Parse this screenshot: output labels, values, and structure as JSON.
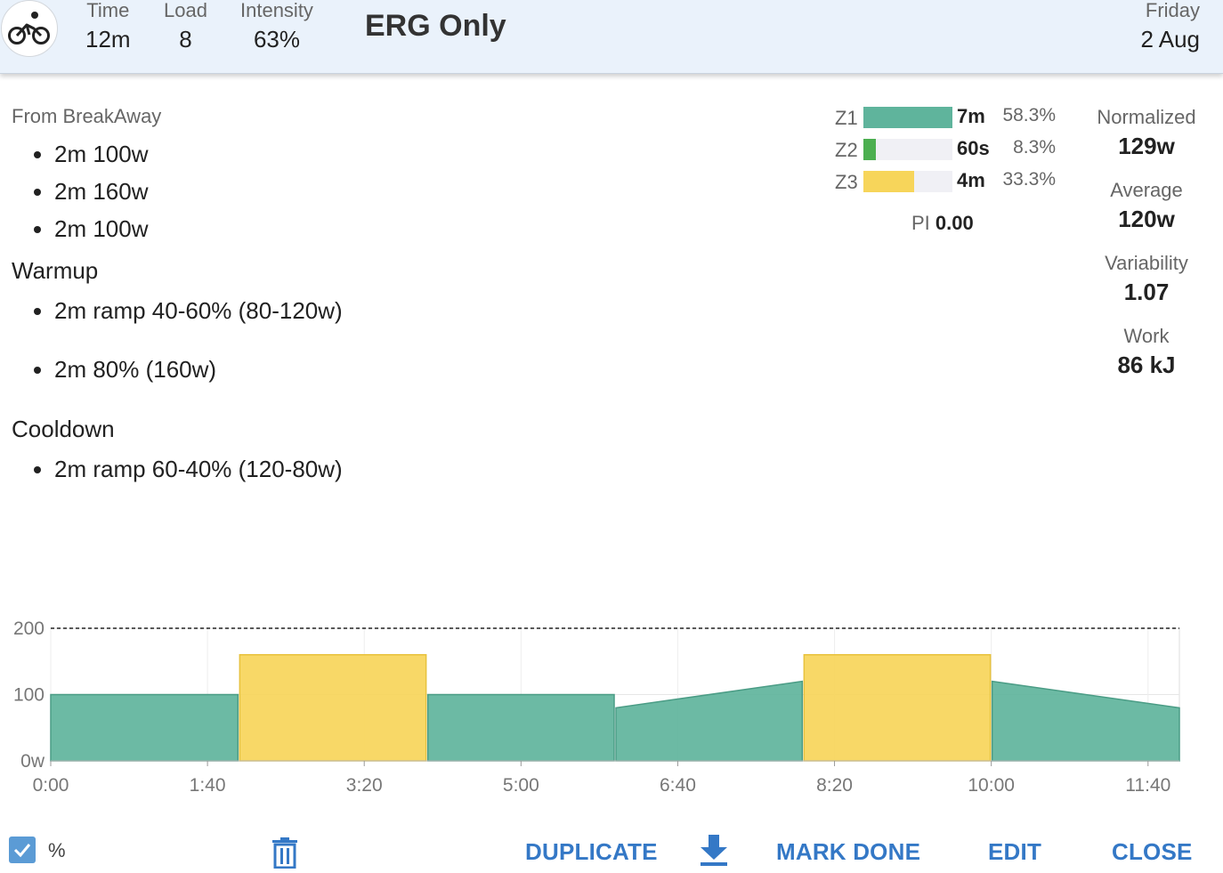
{
  "header": {
    "activity_icon": "bike-icon",
    "stats": [
      {
        "label": "Time",
        "value": "12m"
      },
      {
        "label": "Load",
        "value": "8"
      },
      {
        "label": "Intensity",
        "value": "63%"
      }
    ],
    "title": "ERG Only",
    "day": "Friday",
    "date": "2 Aug"
  },
  "description": {
    "source": "From BreakAway",
    "intro_steps": [
      "2m 100w",
      "2m 160w",
      "2m 100w"
    ],
    "warmup_title": "Warmup",
    "warmup_steps": [
      "2m ramp 40-60% (80-120w)",
      "2m 80% (160w)"
    ],
    "cooldown_title": "Cooldown",
    "cooldown_steps": [
      "2m ramp 60-40% (120-80w)"
    ]
  },
  "zones": [
    {
      "label": "Z1",
      "time": "7m",
      "percent": "58.3%",
      "fraction": 1.0,
      "color": "#5fb49c"
    },
    {
      "label": "Z2",
      "time": "60s",
      "percent": "8.3%",
      "fraction": 0.14,
      "color": "#4caf50"
    },
    {
      "label": "Z3",
      "time": "4m",
      "percent": "33.3%",
      "fraction": 0.57,
      "color": "#f7d55a"
    }
  ],
  "pi": {
    "label": "PI",
    "value": "0.00"
  },
  "metrics": [
    {
      "label": "Normalized",
      "value": "129w"
    },
    {
      "label": "Average",
      "value": "120w"
    },
    {
      "label": "Variability",
      "value": "1.07"
    },
    {
      "label": "Work",
      "value": "86 kJ"
    }
  ],
  "chart_data": {
    "type": "area",
    "x_unit": "seconds",
    "xlim": [
      0,
      720
    ],
    "ylim": [
      0,
      200
    ],
    "y_ticks": [
      "0w",
      "100",
      "200"
    ],
    "x_ticks": [
      "0:00",
      "1:40",
      "3:20",
      "5:00",
      "6:40",
      "8:20",
      "10:00",
      "11:40"
    ],
    "x_tick_values": [
      0,
      100,
      200,
      300,
      400,
      500,
      600,
      700
    ],
    "reference_line": 200,
    "colors": {
      "z1": "#5fb49c",
      "z3": "#f7d55a"
    },
    "segments": [
      {
        "start": 0,
        "end": 120,
        "from": 100,
        "to": 100,
        "zone": "z1"
      },
      {
        "start": 120,
        "end": 240,
        "from": 160,
        "to": 160,
        "zone": "z3"
      },
      {
        "start": 240,
        "end": 360,
        "from": 100,
        "to": 100,
        "zone": "z1"
      },
      {
        "start": 360,
        "end": 480,
        "from": 80,
        "to": 120,
        "zone": "z1"
      },
      {
        "start": 480,
        "end": 600,
        "from": 160,
        "to": 160,
        "zone": "z3"
      },
      {
        "start": 600,
        "end": 720,
        "from": 120,
        "to": 80,
        "zone": "z1"
      }
    ]
  },
  "footer": {
    "percent_label": "%",
    "duplicate": "DUPLICATE",
    "mark_done": "MARK DONE",
    "edit": "EDIT",
    "close": "CLOSE"
  }
}
